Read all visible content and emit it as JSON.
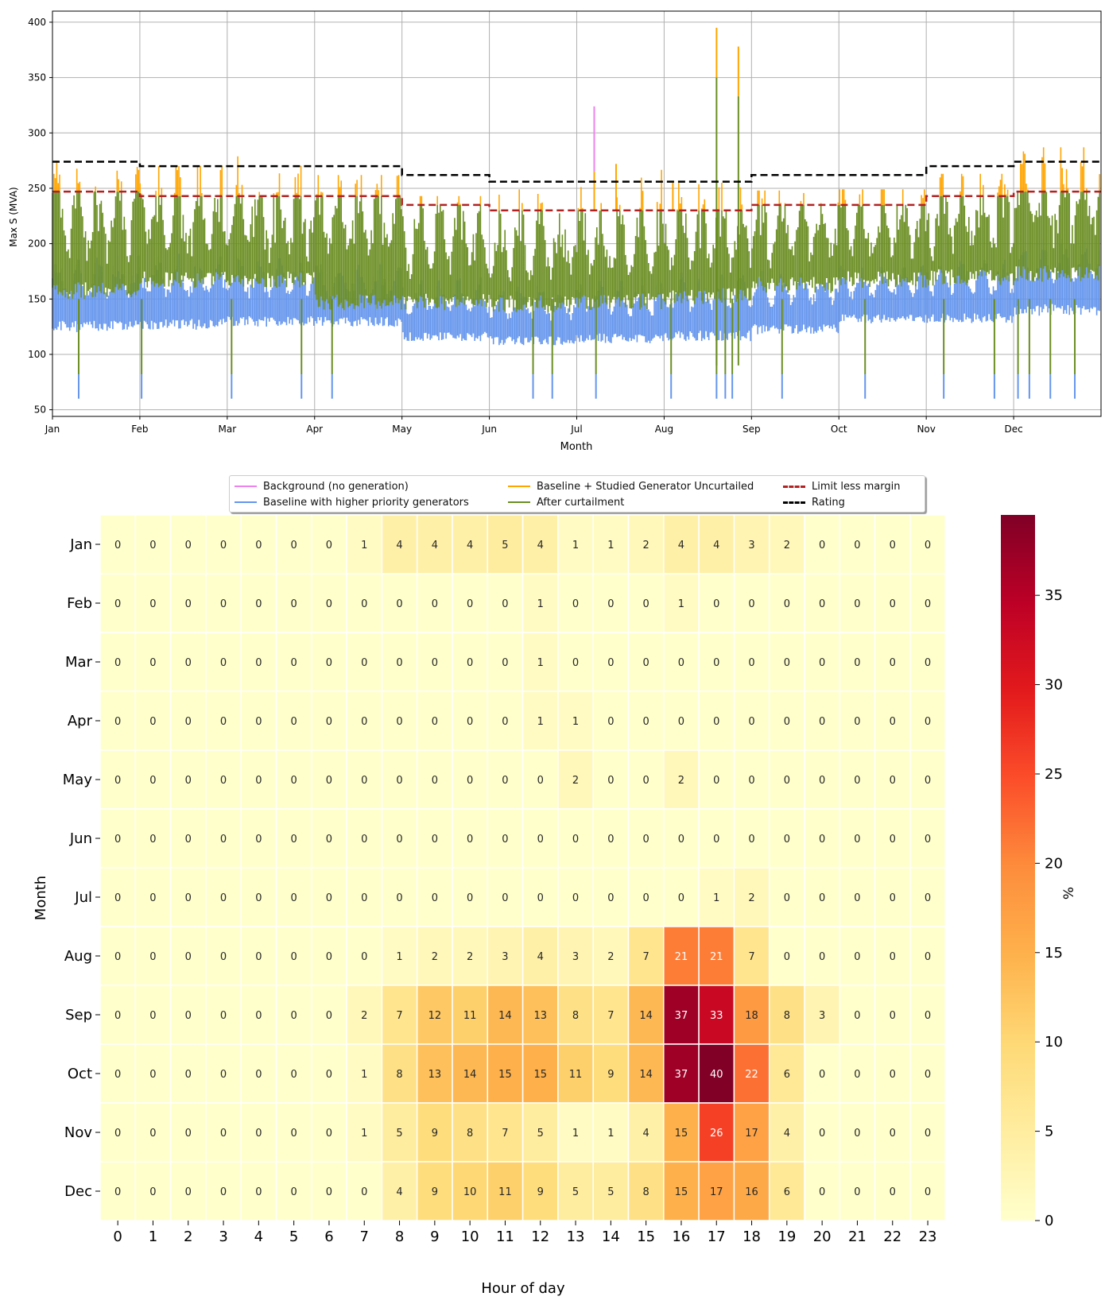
{
  "chart_data": [
    {
      "type": "line",
      "title": "",
      "xlabel": "Month",
      "ylabel": "Max S (MVA)",
      "x_tick_labels": [
        "Jan",
        "Feb",
        "Mar",
        "Apr",
        "May",
        "Jun",
        "Jul",
        "Aug",
        "Sep",
        "Oct",
        "Nov",
        "Dec"
      ],
      "y_ticks": [
        50,
        100,
        150,
        200,
        250,
        300,
        350,
        400
      ],
      "ylim": [
        44,
        410
      ],
      "grid": true,
      "legend_position": "bottom-center",
      "series": [
        {
          "name": "Background (no generation)",
          "color": "#ee82ee",
          "style": "solid",
          "notable_peaks": [
            {
              "month_pos": 6.2,
              "value": 324
            }
          ]
        },
        {
          "name": "Baseline with higher priority generators",
          "color": "#6495ed",
          "style": "solid",
          "monthly_min": [
            120,
            122,
            125,
            125,
            112,
            108,
            110,
            112,
            118,
            128,
            128,
            135
          ],
          "monthly_max": [
            190,
            192,
            190,
            185,
            170,
            165,
            170,
            175,
            180,
            182,
            190,
            205
          ],
          "dip_value": 60
        },
        {
          "name": "Baseline + Studied Generator Uncurtailed",
          "color": "#ffa500",
          "style": "solid",
          "monthly_peak": [
            289,
            270,
            287,
            262,
            243,
            249,
            272,
            255,
            248,
            249,
            263,
            287
          ],
          "notable_peaks": [
            {
              "month_pos": 7.6,
              "value": 395
            },
            {
              "month_pos": 7.85,
              "value": 378
            }
          ]
        },
        {
          "name": "After curtailment",
          "color": "#6b8e23",
          "style": "solid",
          "monthly_min": [
            150,
            160,
            160,
            140,
            140,
            138,
            140,
            145,
            155,
            160,
            162,
            165
          ],
          "dip_value": 82,
          "notable_peaks": [
            {
              "month_pos": 7.6,
              "value": 350
            },
            {
              "month_pos": 7.85,
              "value": 333
            }
          ]
        },
        {
          "name": "Limit less margin",
          "color": "#b22222",
          "style": "dashed",
          "monthly_values": [
            247,
            243,
            243,
            243,
            235,
            230,
            230,
            230,
            235,
            235,
            243,
            247
          ]
        },
        {
          "name": "Rating",
          "color": "#000000",
          "style": "dashed",
          "monthly_values": [
            274,
            270,
            270,
            270,
            262,
            256,
            256,
            256,
            262,
            262,
            270,
            274
          ]
        }
      ]
    },
    {
      "type": "heatmap",
      "title": "",
      "xlabel": "Hour of day",
      "ylabel": "Month",
      "colorbar_label": "%",
      "colorbar_ticks": [
        0,
        5,
        10,
        15,
        20,
        25,
        30,
        35
      ],
      "colorbar_range": [
        0,
        39.5
      ],
      "colormap": "YlOrRd",
      "x": [
        "0",
        "1",
        "2",
        "3",
        "4",
        "5",
        "6",
        "7",
        "8",
        "9",
        "10",
        "11",
        "12",
        "13",
        "14",
        "15",
        "16",
        "17",
        "18",
        "19",
        "20",
        "21",
        "22",
        "23"
      ],
      "y": [
        "Jan",
        "Feb",
        "Mar",
        "Apr",
        "May",
        "Jun",
        "Jul",
        "Aug",
        "Sep",
        "Oct",
        "Nov",
        "Dec"
      ],
      "values": [
        [
          0,
          0,
          0,
          0,
          0,
          0,
          0,
          1,
          4,
          4,
          4,
          5,
          4,
          1,
          1,
          2,
          4,
          4,
          3,
          2,
          0,
          0,
          0,
          0
        ],
        [
          0,
          0,
          0,
          0,
          0,
          0,
          0,
          0,
          0,
          0,
          0,
          0,
          1,
          0,
          0,
          0,
          1,
          0,
          0,
          0,
          0,
          0,
          0,
          0
        ],
        [
          0,
          0,
          0,
          0,
          0,
          0,
          0,
          0,
          0,
          0,
          0,
          0,
          1,
          0,
          0,
          0,
          0,
          0,
          0,
          0,
          0,
          0,
          0,
          0
        ],
        [
          0,
          0,
          0,
          0,
          0,
          0,
          0,
          0,
          0,
          0,
          0,
          0,
          1,
          1,
          0,
          0,
          0,
          0,
          0,
          0,
          0,
          0,
          0,
          0
        ],
        [
          0,
          0,
          0,
          0,
          0,
          0,
          0,
          0,
          0,
          0,
          0,
          0,
          0,
          2,
          0,
          0,
          2,
          0,
          0,
          0,
          0,
          0,
          0,
          0
        ],
        [
          0,
          0,
          0,
          0,
          0,
          0,
          0,
          0,
          0,
          0,
          0,
          0,
          0,
          0,
          0,
          0,
          0,
          0,
          0,
          0,
          0,
          0,
          0,
          0
        ],
        [
          0,
          0,
          0,
          0,
          0,
          0,
          0,
          0,
          0,
          0,
          0,
          0,
          0,
          0,
          0,
          0,
          0,
          1,
          2,
          0,
          0,
          0,
          0,
          0
        ],
        [
          0,
          0,
          0,
          0,
          0,
          0,
          0,
          0,
          1,
          2,
          2,
          3,
          4,
          3,
          2,
          7,
          21,
          21,
          7,
          0,
          0,
          0,
          0,
          0
        ],
        [
          0,
          0,
          0,
          0,
          0,
          0,
          0,
          2,
          7,
          12,
          11,
          14,
          13,
          8,
          7,
          14,
          37,
          33,
          18,
          8,
          3,
          0,
          0,
          0
        ],
        [
          0,
          0,
          0,
          0,
          0,
          0,
          0,
          1,
          8,
          13,
          14,
          15,
          15,
          11,
          9,
          14,
          37,
          40,
          22,
          6,
          0,
          0,
          0,
          0
        ],
        [
          0,
          0,
          0,
          0,
          0,
          0,
          0,
          1,
          5,
          9,
          8,
          7,
          5,
          1,
          1,
          4,
          15,
          26,
          17,
          4,
          0,
          0,
          0,
          0
        ],
        [
          0,
          0,
          0,
          0,
          0,
          0,
          0,
          0,
          4,
          9,
          10,
          11,
          9,
          5,
          5,
          8,
          15,
          17,
          16,
          6,
          0,
          0,
          0,
          0
        ]
      ],
      "colorbar_colors": [
        "#ffffcc",
        "#ffeda0",
        "#fed976",
        "#feb24c",
        "#fd8d3c",
        "#fc4e2a",
        "#e31a1c",
        "#bd0026",
        "#800026"
      ]
    }
  ]
}
